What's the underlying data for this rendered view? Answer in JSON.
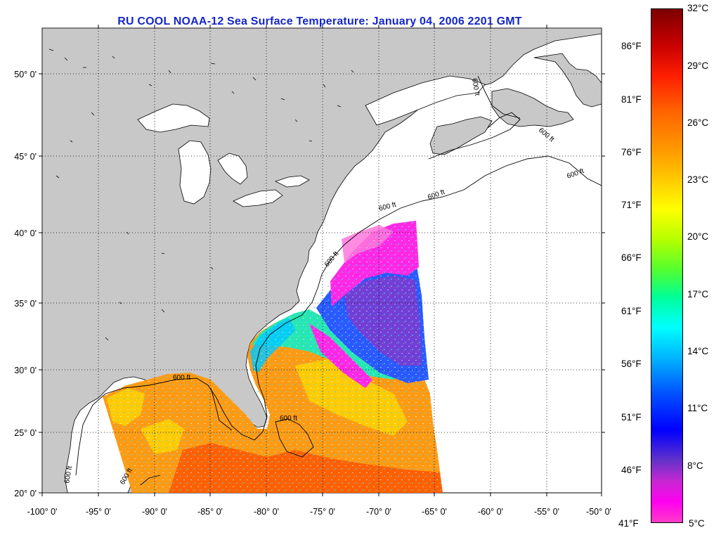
{
  "title": "RU COOL  NOAA-12  Sea Surface Temperature:  January 04, 2006 2201 GMT",
  "map": {
    "lon_ticks": [
      "-100° 0'",
      "-95° 0'",
      "-90° 0'",
      "-85° 0'",
      "-80° 0'",
      "-75° 0'",
      "-70° 0'",
      "-65° 0'",
      "-60° 0'",
      "-55° 0'",
      "-50° 0'"
    ],
    "lat_ticks": [
      "50° 0'",
      "45° 0'",
      "40° 0'",
      "35° 0'",
      "30° 0'",
      "25° 0'",
      "20° 0'"
    ],
    "isobath_labels": [
      "600 ft",
      "600 ft",
      "600 ft",
      "600 ft",
      "600 ft",
      "600 ft",
      "600 ft",
      "600 ft",
      "600 ft",
      "600 ft"
    ],
    "land_color": "#c8c8c8",
    "ocean_color": "#ffffff"
  },
  "colorbar": {
    "celsius_labels": [
      "32°C",
      "29°C",
      "26°C",
      "23°C",
      "20°C",
      "17°C",
      "14°C",
      "11°C",
      "8°C",
      "5°C"
    ],
    "fahrenheit_labels": [
      "86°F",
      "81°F",
      "76°F",
      "71°F",
      "66°F",
      "61°F",
      "56°F",
      "51°F",
      "46°F",
      "41°F"
    ],
    "colors_top_to_bottom": [
      "#7d0000",
      "#ff1e00",
      "#ff8c00",
      "#ffff00",
      "#a0ff00",
      "#00ff64",
      "#00ffff",
      "#00a0ff",
      "#0000ff",
      "#8c2cc8",
      "#ff00ff",
      "#ff46c8"
    ]
  }
}
